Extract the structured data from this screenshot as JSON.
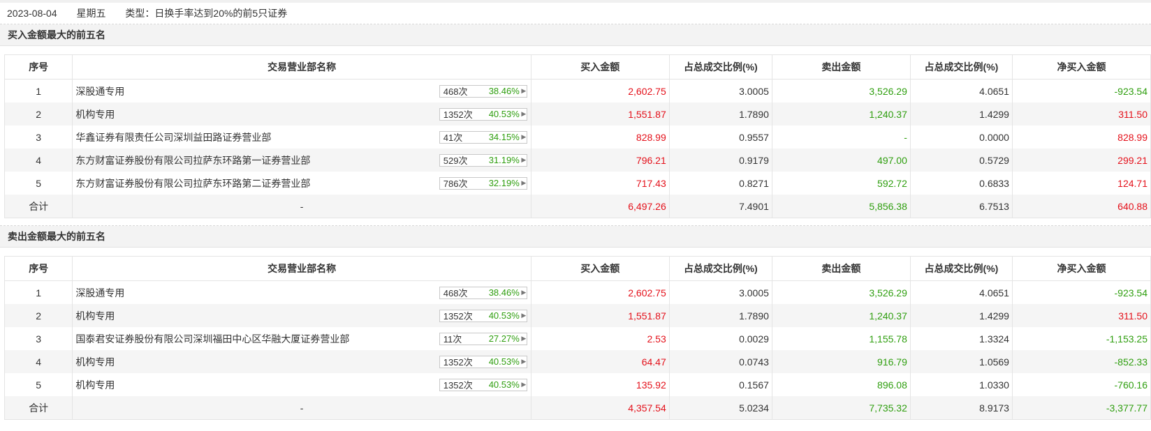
{
  "info": {
    "date": "2023-08-04",
    "weekday": "星期五",
    "type_text": "类型：日换手率达到20%的前5只证券"
  },
  "headers": [
    "序号",
    "交易营业部名称",
    "买入金额",
    "占总成交比例(%)",
    "卖出金额",
    "占总成交比例(%)",
    "净买入金额"
  ],
  "colors": {
    "buy": "#e4101a",
    "sell": "#2e9e0e"
  },
  "icons": {
    "stat_arrow": "caret-right-icon"
  },
  "buy_section": {
    "title": "买入金额最大的前五名",
    "rows": [
      {
        "idx": "1",
        "name": "深股通专用",
        "count": "468次",
        "pct": "38.46%",
        "buy": "2,602.75",
        "buy_ratio": "3.0005",
        "sell": "3,526.29",
        "sell_ratio": "4.0651",
        "net": "-923.54",
        "net_color": "green"
      },
      {
        "idx": "2",
        "name": "机构专用",
        "count": "1352次",
        "pct": "40.53%",
        "buy": "1,551.87",
        "buy_ratio": "1.7890",
        "sell": "1,240.37",
        "sell_ratio": "1.4299",
        "net": "311.50",
        "net_color": "red"
      },
      {
        "idx": "3",
        "name": "华鑫证券有限责任公司深圳益田路证券营业部",
        "count": "41次",
        "pct": "34.15%",
        "buy": "828.99",
        "buy_ratio": "0.9557",
        "sell": "-",
        "sell_ratio": "0.0000",
        "net": "828.99",
        "net_color": "red"
      },
      {
        "idx": "4",
        "name": "东方财富证券股份有限公司拉萨东环路第一证券营业部",
        "count": "529次",
        "pct": "31.19%",
        "buy": "796.21",
        "buy_ratio": "0.9179",
        "sell": "497.00",
        "sell_ratio": "0.5729",
        "net": "299.21",
        "net_color": "red"
      },
      {
        "idx": "5",
        "name": "东方财富证券股份有限公司拉萨东环路第二证券营业部",
        "count": "786次",
        "pct": "32.19%",
        "buy": "717.43",
        "buy_ratio": "0.8271",
        "sell": "592.72",
        "sell_ratio": "0.6833",
        "net": "124.71",
        "net_color": "red"
      }
    ],
    "total": {
      "label": "合计",
      "name": "-",
      "buy": "6,497.26",
      "buy_ratio": "7.4901",
      "sell": "5,856.38",
      "sell_ratio": "6.7513",
      "net": "640.88",
      "net_color": "red"
    }
  },
  "sell_section": {
    "title": "卖出金额最大的前五名",
    "rows": [
      {
        "idx": "1",
        "name": "深股通专用",
        "count": "468次",
        "pct": "38.46%",
        "buy": "2,602.75",
        "buy_ratio": "3.0005",
        "sell": "3,526.29",
        "sell_ratio": "4.0651",
        "net": "-923.54",
        "net_color": "green"
      },
      {
        "idx": "2",
        "name": "机构专用",
        "count": "1352次",
        "pct": "40.53%",
        "buy": "1,551.87",
        "buy_ratio": "1.7890",
        "sell": "1,240.37",
        "sell_ratio": "1.4299",
        "net": "311.50",
        "net_color": "red"
      },
      {
        "idx": "3",
        "name": "国泰君安证券股份有限公司深圳福田中心区华融大厦证券营业部",
        "count": "11次",
        "pct": "27.27%",
        "buy": "2.53",
        "buy_ratio": "0.0029",
        "sell": "1,155.78",
        "sell_ratio": "1.3324",
        "net": "-1,153.25",
        "net_color": "green"
      },
      {
        "idx": "4",
        "name": "机构专用",
        "count": "1352次",
        "pct": "40.53%",
        "buy": "64.47",
        "buy_ratio": "0.0743",
        "sell": "916.79",
        "sell_ratio": "1.0569",
        "net": "-852.33",
        "net_color": "green"
      },
      {
        "idx": "5",
        "name": "机构专用",
        "count": "1352次",
        "pct": "40.53%",
        "buy": "135.92",
        "buy_ratio": "0.1567",
        "sell": "896.08",
        "sell_ratio": "1.0330",
        "net": "-760.16",
        "net_color": "green"
      }
    ],
    "total": {
      "label": "合计",
      "name": "-",
      "buy": "4,357.54",
      "buy_ratio": "5.0234",
      "sell": "7,735.32",
      "sell_ratio": "8.9173",
      "net": "-3,377.77",
      "net_color": "green"
    }
  }
}
